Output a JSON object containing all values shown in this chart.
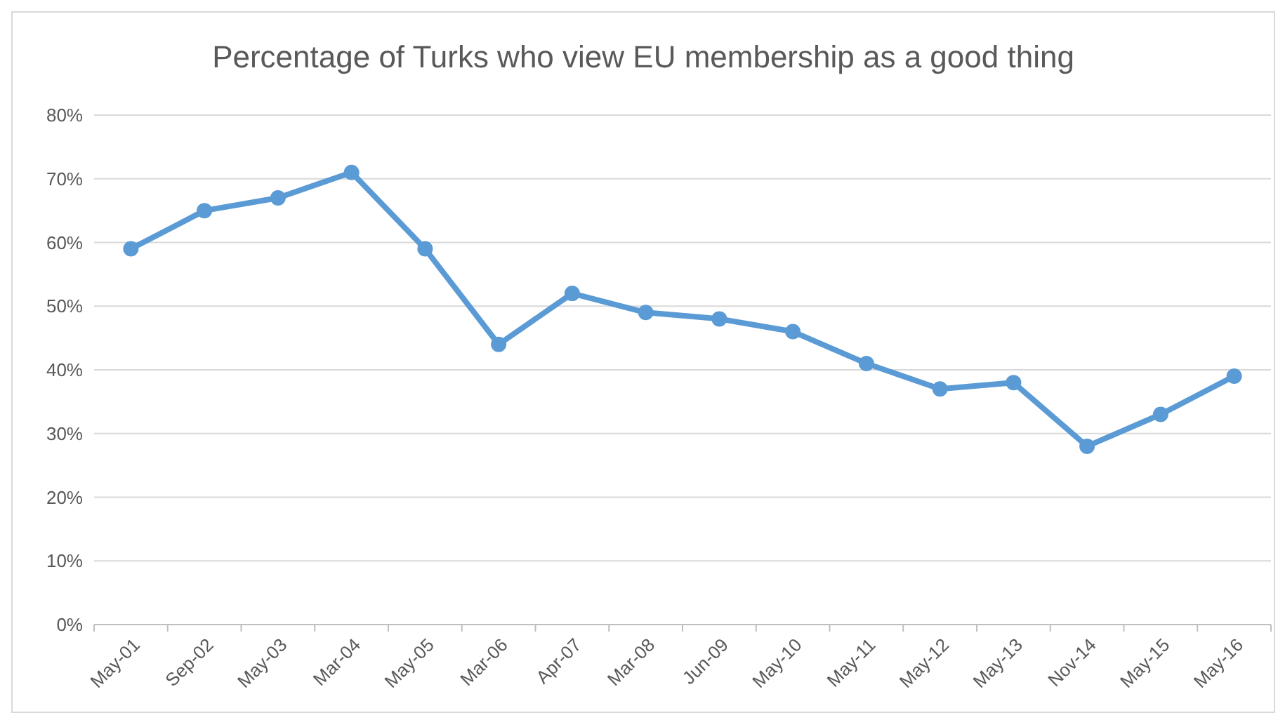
{
  "chart_data": {
    "type": "line",
    "title": "Percentage of Turks who view EU membership as a good thing",
    "categories": [
      "May-01",
      "Sep-02",
      "May-03",
      "Mar-04",
      "May-05",
      "Mar-06",
      "Apr-07",
      "Mar-08",
      "Jun-09",
      "May-10",
      "May-11",
      "May-12",
      "May-13",
      "Nov-14",
      "May-15",
      "May-16"
    ],
    "series": [
      {
        "color": "#5b9bd5",
        "values": [
          59,
          65,
          67,
          71,
          59,
          44,
          52,
          49,
          48,
          46,
          41,
          37,
          38,
          28,
          33,
          39
        ]
      }
    ],
    "ylim": [
      0,
      80
    ],
    "yticks": [
      {
        "value": 0,
        "label": "0%"
      },
      {
        "value": 10,
        "label": "10%"
      },
      {
        "value": 20,
        "label": "20%"
      },
      {
        "value": 30,
        "label": "30%"
      },
      {
        "value": 40,
        "label": "40%"
      },
      {
        "value": 50,
        "label": "50%"
      },
      {
        "value": 60,
        "label": "60%"
      },
      {
        "value": 70,
        "label": "70%"
      },
      {
        "value": 80,
        "label": "80%"
      }
    ],
    "grid": "y",
    "marker": "circle",
    "line_style": "solid"
  }
}
